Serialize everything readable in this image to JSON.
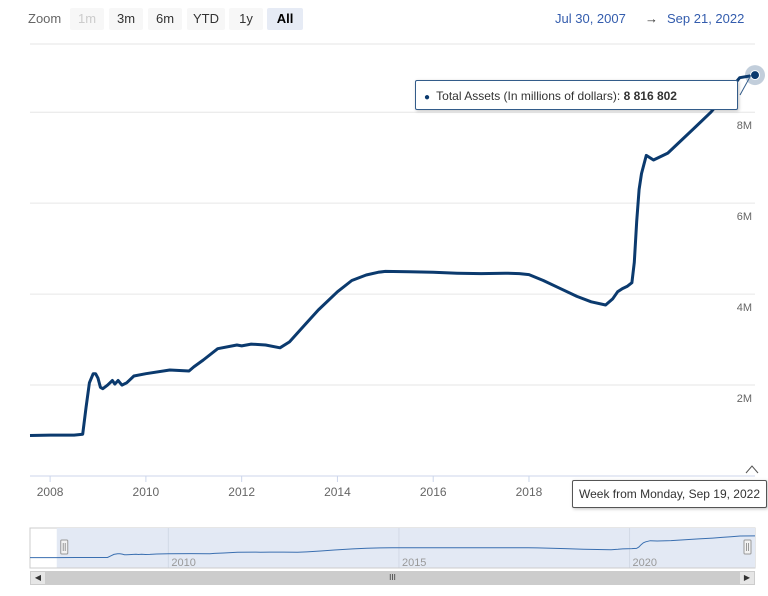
{
  "range_selector": {
    "zoom_label": "Zoom",
    "buttons": [
      {
        "label": "1m",
        "state": "disabled"
      },
      {
        "label": "3m",
        "state": "normal"
      },
      {
        "label": "6m",
        "state": "normal"
      },
      {
        "label": "YTD",
        "state": "normal"
      },
      {
        "label": "1y",
        "state": "normal"
      },
      {
        "label": "All",
        "state": "selected"
      }
    ],
    "from_date": "Jul 30, 2007",
    "arrow": "→",
    "to_date": "Sep 21, 2022"
  },
  "tooltip": {
    "series_label": "Total Assets (In millions of dollars):",
    "value_text": "8 816 802",
    "x_label": "Week from Monday, Sep 19, 2022"
  },
  "navigator": {
    "x_tick_labels": [
      "2010",
      "2015",
      "2020"
    ],
    "scroll_thumb_label": "III",
    "left_arrow": "◀",
    "right_arrow": "▶"
  },
  "colors": {
    "series": "#0b3a6e",
    "navigator_fill": "#e3e9f4",
    "navigator_line": "#3a6fb0",
    "selector_date": "#335cad"
  },
  "chart_data": {
    "type": "line",
    "title": "",
    "xlabel": "",
    "ylabel": "",
    "xlim": [
      2007.58,
      2022.72
    ],
    "ylim": [
      0,
      9500000
    ],
    "x_ticks": [
      2008,
      2010,
      2012,
      2014,
      2016,
      2018
    ],
    "x_tick_labels": [
      "2008",
      "2010",
      "2012",
      "2014",
      "2016",
      "2018"
    ],
    "y_ticks": [
      2000000,
      4000000,
      6000000,
      8000000
    ],
    "y_tick_labels": [
      "2M",
      "4M",
      "6M",
      "8M"
    ],
    "grid": true,
    "legend": "none",
    "series": [
      {
        "x": [
          2007.58,
          2008.0,
          2008.5,
          2008.68,
          2008.75,
          2008.82,
          2008.9,
          2008.95,
          2009.0,
          2009.05,
          2009.1,
          2009.2,
          2009.3,
          2009.35,
          2009.42,
          2009.5,
          2009.6,
          2009.75,
          2010.0,
          2010.5,
          2010.9,
          2011.0,
          2011.2,
          2011.5,
          2011.9,
          2012.0,
          2012.2,
          2012.5,
          2012.8,
          2013.0,
          2013.3,
          2013.6,
          2014.0,
          2014.3,
          2014.6,
          2014.85,
          2015.0,
          2015.5,
          2016.0,
          2016.5,
          2017.0,
          2017.5,
          2017.8,
          2018.0,
          2018.3,
          2018.6,
          2019.0,
          2019.3,
          2019.6,
          2019.75,
          2019.85,
          2019.95,
          2020.05,
          2020.15,
          2020.2,
          2020.25,
          2020.3,
          2020.35,
          2020.45,
          2020.6,
          2020.9,
          2021.2,
          2021.5,
          2021.8,
          2022.0,
          2022.2,
          2022.4,
          2022.72
        ],
        "y": [
          890000,
          900000,
          900000,
          920000,
          1500000,
          2050000,
          2250000,
          2250000,
          2150000,
          1950000,
          1920000,
          2000000,
          2100000,
          2020000,
          2100000,
          2000000,
          2050000,
          2200000,
          2250000,
          2330000,
          2310000,
          2400000,
          2550000,
          2800000,
          2880000,
          2860000,
          2900000,
          2880000,
          2820000,
          2950000,
          3300000,
          3650000,
          4050000,
          4300000,
          4420000,
          4480000,
          4500000,
          4490000,
          4480000,
          4460000,
          4450000,
          4460000,
          4450000,
          4430000,
          4300000,
          4150000,
          3950000,
          3830000,
          3760000,
          3900000,
          4050000,
          4120000,
          4170000,
          4250000,
          4700000,
          5600000,
          6300000,
          6650000,
          7050000,
          6950000,
          7100000,
          7400000,
          7700000,
          8000000,
          8250000,
          8500000,
          8760000,
          8816802
        ]
      }
    ],
    "navigator": {
      "xlim": [
        2007.0,
        2022.72
      ],
      "x_ticks": [
        2010,
        2015,
        2020
      ]
    }
  }
}
